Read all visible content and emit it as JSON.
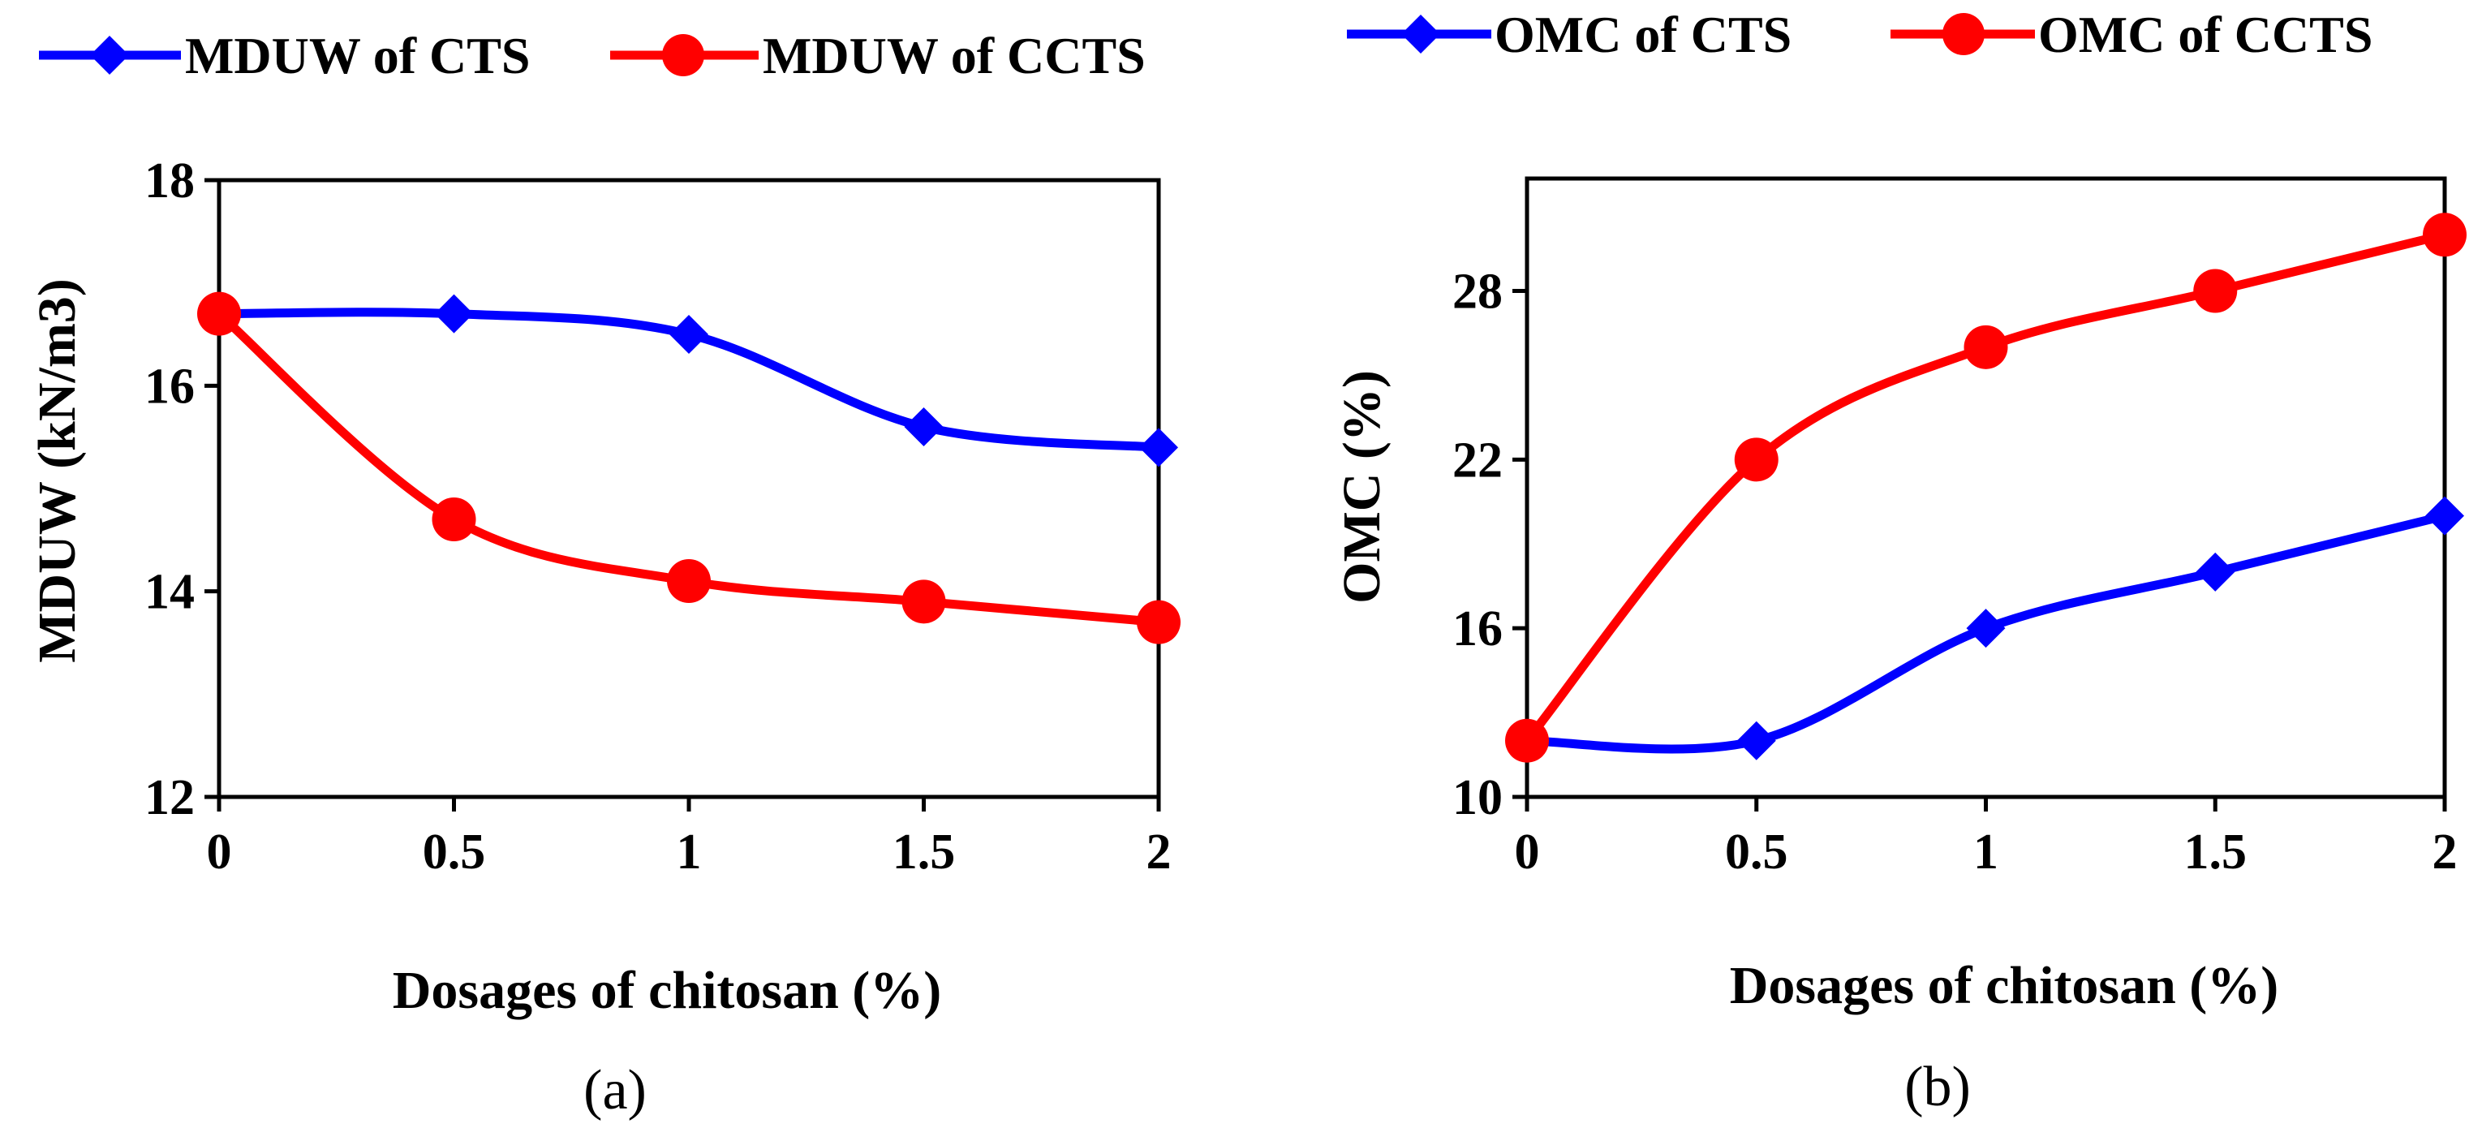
{
  "colors": {
    "cts": "#0000FF",
    "ccts": "#FF0000",
    "axis": "#000000"
  },
  "chart_data": [
    {
      "type": "line",
      "panel_label": "(a)",
      "xlabel": "Dosages of chitosan (%)",
      "ylabel": "MDUW (kN/m3)",
      "x": [
        0,
        0.5,
        1,
        1.5,
        2
      ],
      "x_tick_labels": [
        "0",
        "0.5",
        "1",
        "1.5",
        "2"
      ],
      "xlim": [
        0,
        2
      ],
      "ylim": [
        12,
        18
      ],
      "y_ticks": [
        12,
        14,
        16,
        18
      ],
      "y_tick_labels": [
        "12",
        "14",
        "16",
        "18"
      ],
      "grid": false,
      "legend_position": "top",
      "series": [
        {
          "name": "MDUW of CTS",
          "marker": "diamond",
          "color_key": "cts",
          "values": [
            16.7,
            16.7,
            16.5,
            15.6,
            15.4
          ]
        },
        {
          "name": "MDUW of CCTS",
          "marker": "circle",
          "color_key": "ccts",
          "values": [
            16.7,
            14.7,
            14.1,
            13.9,
            13.7
          ]
        }
      ]
    },
    {
      "type": "line",
      "panel_label": "(b)",
      "xlabel": "Dosages of chitosan (%)",
      "ylabel": "OMC (%)",
      "x": [
        0,
        0.5,
        1,
        1.5,
        2
      ],
      "x_tick_labels": [
        "0",
        "0.5",
        "1",
        "1.5",
        "2"
      ],
      "xlim": [
        0,
        2
      ],
      "ylim": [
        10,
        32
      ],
      "y_ticks": [
        10,
        16,
        22,
        28
      ],
      "y_tick_labels": [
        "10",
        "16",
        "22",
        "28"
      ],
      "grid": false,
      "legend_position": "top",
      "series": [
        {
          "name": "OMC of CTS",
          "marker": "diamond",
          "color_key": "cts",
          "values": [
            12,
            12,
            16,
            18,
            20
          ]
        },
        {
          "name": "OMC of CCTS",
          "marker": "circle",
          "color_key": "ccts",
          "values": [
            12,
            22,
            26,
            28,
            30
          ]
        }
      ]
    }
  ]
}
